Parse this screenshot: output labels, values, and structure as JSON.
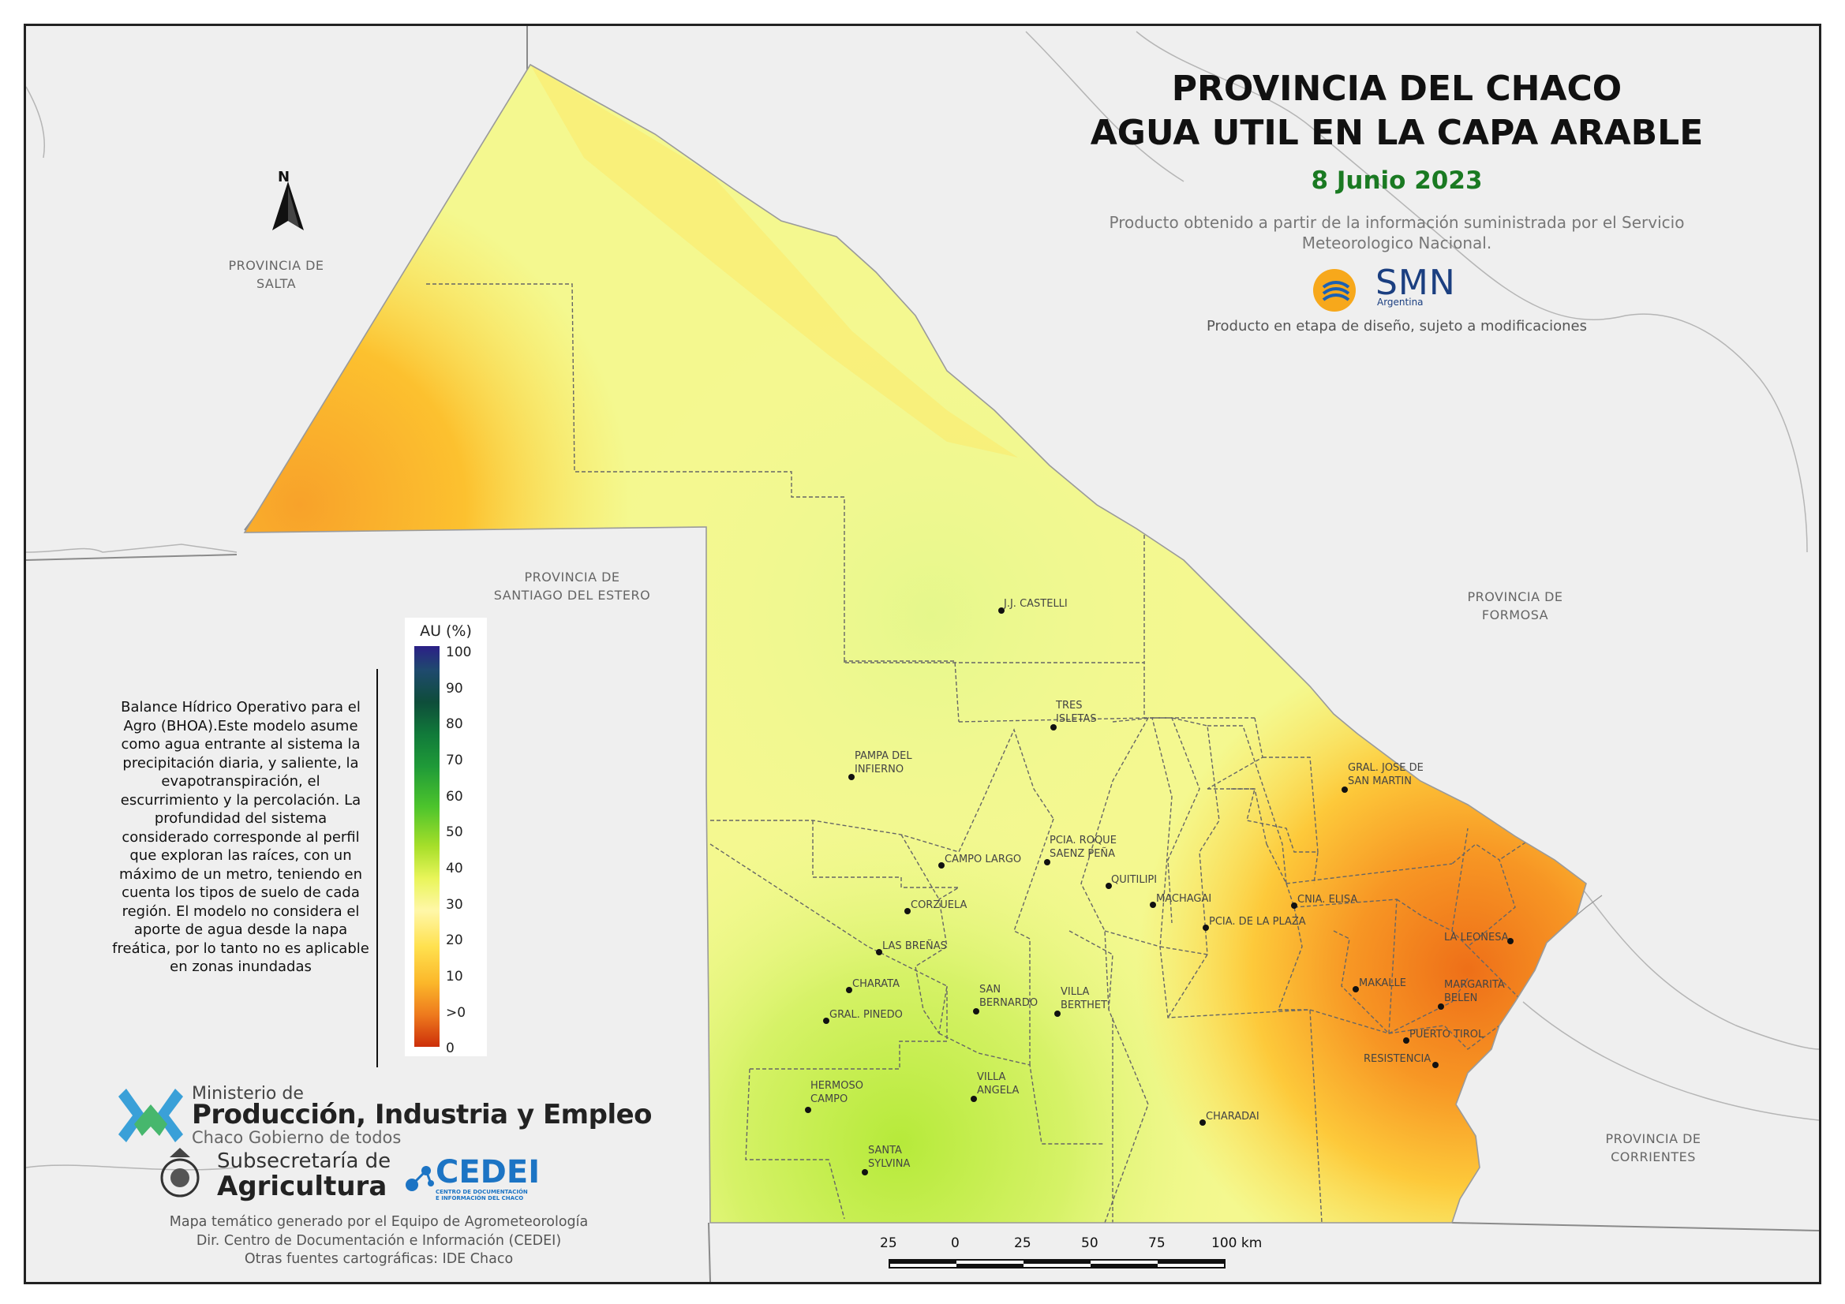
{
  "title": {
    "line1": "PROVINCIA DEL CHACO",
    "line2": "AGUA UTIL EN LA CAPA ARABLE",
    "date": "8 Junio 2023",
    "source_line1": "Producto obtenido a partir de la información suministrada por el Servicio",
    "source_line2": "Meteorologico Nacional.",
    "smn_logo_text": "SMN",
    "smn_logo_sub": "Argentina",
    "design_note": "Producto en etapa de diseño, sujeto a modificaciones"
  },
  "north_arrow": {
    "label": "N",
    "icon": "north-arrow-icon"
  },
  "provinces": {
    "salta": [
      "PROVINCIA DE",
      "SALTA"
    ],
    "santiago": [
      "PROVINCIA DE",
      "SANTIAGO DEL ESTERO"
    ],
    "formosa": [
      "PROVINCIA DE",
      "FORMOSA"
    ],
    "corrientes": [
      "PROVINCIA DE",
      "CORRIENTES"
    ]
  },
  "cities": [
    "J.J. CASTELLI",
    "TRES ISLETAS",
    "PAMPA DEL INFIERNO",
    "GRAL. JOSE DE SAN MARTIN",
    "CAMPO LARGO",
    "PCIA. ROQUE SAENZ PEÑA",
    "QUITILIPI",
    "MACHAGAI",
    "CNIA. ELISA",
    "CORZUELA",
    "PCIA. DE LA PLAZA",
    "LA LEONESA",
    "LAS BREÑAS",
    "CHARATA",
    "SAN BERNARDO",
    "VILLA BERTHET",
    "MAKALLE",
    "MARGARITA BELEN",
    "GRAL. PINEDO",
    "PUERTO TIROL",
    "RESISTENCIA",
    "HERMOSO CAMPO",
    "VILLA ANGELA",
    "CHARADAI",
    "SANTA SYLVINA"
  ],
  "legend": {
    "title": "AU (%)",
    "ticks": [
      "100",
      "90",
      "80",
      "70",
      "60",
      "50",
      "40",
      "30",
      "20",
      "10",
      ">0",
      "0"
    ]
  },
  "note": "Balance Hídrico Operativo para el Agro (BHOA).Este modelo asume como agua entrante al sistema la precipitación diaria, y saliente, la evapotranspiración, el escurrimiento y la percolación. La profundidad del sistema considerado corresponde al perfil que exploran las raíces, con un máximo de un metro, teniendo en cuenta los tipos de suelo de cada región. El modelo no considera el aporte de agua desde la napa freática, por lo tanto no es aplicable en zonas inundadas",
  "logos": {
    "ministry_line1": "Ministerio de",
    "ministry_line2": "Producción, Industria y Empleo",
    "ministry_line3": "Chaco Gobierno de todos",
    "sub_line1": "Subsecretaría de",
    "sub_line2": "Agricultura",
    "cedei": "CEDEI",
    "cedei_sub": "CENTRO DE DOCUMENTACIÓN E INFORMACIÓN DEL CHACO"
  },
  "credits": {
    "line1": "Mapa temático generado por el Equipo de Agrometeorología",
    "line2": "Dir. Centro de Documentación e Información (CEDEI)",
    "line3": "Otras fuentes cartográficas: IDE Chaco"
  },
  "scale": {
    "labels": [
      "25",
      "0",
      "25",
      "50",
      "75",
      "100 km"
    ]
  },
  "colors": {
    "title_date": "#1a7a22",
    "au_low": "#cc2f0a",
    "au_mid": "#ffe14f",
    "au_high": "#2b1f87",
    "smn_blue": "#1b3f80",
    "cedei_blue": "#1c74c4"
  }
}
